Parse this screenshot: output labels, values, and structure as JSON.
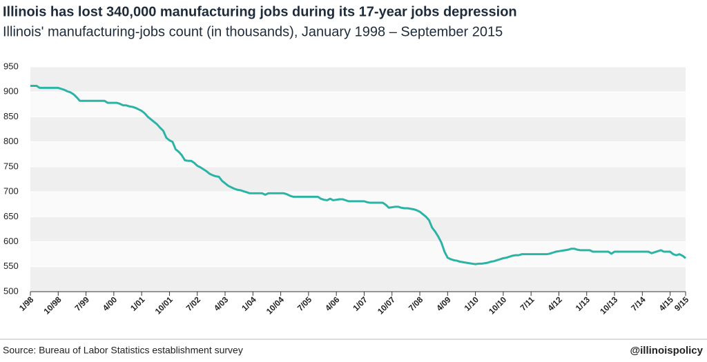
{
  "chart_data": {
    "type": "line",
    "title": "Illinois has lost 340,000 manufacturing jobs during its 17-year jobs depression",
    "subtitle": "Illinois' manufacturing-jobs count (in thousands), January 1998 – September 2015",
    "source": "Source: Bureau of Labor Statistics establishment survey",
    "credit": "@illinoispolicy",
    "color": "#2bb3a6",
    "grid": true,
    "ylim": [
      500,
      950
    ],
    "yticks": [
      500,
      550,
      600,
      650,
      700,
      750,
      800,
      850,
      900,
      950
    ],
    "categories": [
      "1/98",
      null,
      null,
      null,
      null,
      null,
      null,
      null,
      null,
      "10/98",
      null,
      null,
      null,
      null,
      null,
      null,
      null,
      null,
      "7/99",
      null,
      null,
      null,
      null,
      null,
      null,
      null,
      null,
      "4/00",
      null,
      null,
      null,
      null,
      null,
      null,
      null,
      null,
      "1/01",
      null,
      null,
      null,
      null,
      null,
      null,
      null,
      null,
      "10/01",
      null,
      null,
      null,
      null,
      null,
      null,
      null,
      null,
      "7/02",
      null,
      null,
      null,
      null,
      null,
      null,
      null,
      null,
      "4/03",
      null,
      null,
      null,
      null,
      null,
      null,
      null,
      null,
      "1/04",
      null,
      null,
      null,
      null,
      null,
      null,
      null,
      null,
      "10/04",
      null,
      null,
      null,
      null,
      null,
      null,
      null,
      null,
      "7/05",
      null,
      null,
      null,
      null,
      null,
      null,
      null,
      null,
      "4/06",
      null,
      null,
      null,
      null,
      null,
      null,
      null,
      null,
      "1/07",
      null,
      null,
      null,
      null,
      null,
      null,
      null,
      null,
      "10/07",
      null,
      null,
      null,
      null,
      null,
      null,
      null,
      null,
      "7/08",
      null,
      null,
      null,
      null,
      null,
      null,
      null,
      null,
      "4/09",
      null,
      null,
      null,
      null,
      null,
      null,
      null,
      null,
      "1/10",
      null,
      null,
      null,
      null,
      null,
      null,
      null,
      null,
      "10/10",
      null,
      null,
      null,
      null,
      null,
      null,
      null,
      null,
      "7/11",
      null,
      null,
      null,
      null,
      null,
      null,
      null,
      null,
      "4/12",
      null,
      null,
      null,
      null,
      null,
      null,
      null,
      null,
      "1/13",
      null,
      null,
      null,
      null,
      null,
      null,
      null,
      null,
      "10/13",
      null,
      null,
      null,
      null,
      null,
      null,
      null,
      null,
      "7/14",
      null,
      null,
      null,
      null,
      null,
      null,
      null,
      null,
      "4/15",
      null,
      null,
      null,
      null,
      "9/15"
    ],
    "values": [
      912,
      912,
      912,
      908,
      908,
      908,
      908,
      908,
      908,
      908,
      906,
      904,
      901,
      899,
      895,
      889,
      882,
      882,
      882,
      882,
      882,
      882,
      882,
      882,
      882,
      878,
      878,
      878,
      878,
      876,
      873,
      873,
      871,
      870,
      868,
      865,
      862,
      857,
      850,
      845,
      840,
      835,
      828,
      822,
      808,
      803,
      800,
      785,
      780,
      773,
      763,
      762,
      762,
      758,
      752,
      749,
      745,
      741,
      736,
      733,
      731,
      730,
      722,
      717,
      712,
      709,
      706,
      704,
      703,
      701,
      699,
      697,
      697,
      697,
      697,
      697,
      694,
      697,
      697,
      697,
      697,
      697,
      697,
      695,
      692,
      690,
      690,
      690,
      690,
      690,
      690,
      690,
      690,
      690,
      686,
      684,
      683,
      686,
      683,
      684,
      685,
      685,
      683,
      681,
      681,
      681,
      681,
      681,
      681,
      679,
      678,
      678,
      678,
      678,
      678,
      674,
      668,
      669,
      670,
      670,
      668,
      667,
      667,
      666,
      665,
      663,
      660,
      655,
      650,
      643,
      628,
      620,
      610,
      598,
      580,
      568,
      565,
      563,
      562,
      560,
      559,
      558,
      557,
      556,
      555,
      556,
      556,
      557,
      558,
      560,
      561,
      563,
      565,
      567,
      568,
      570,
      572,
      573,
      573,
      575,
      575,
      575,
      575,
      575,
      575,
      575,
      575,
      575,
      576,
      578,
      580,
      581,
      582,
      583,
      584,
      586,
      586,
      584,
      583,
      583,
      583,
      583,
      580,
      580,
      580,
      580,
      580,
      580,
      576,
      580,
      580,
      580,
      580,
      580,
      580,
      580,
      580,
      580,
      580,
      580,
      580,
      577,
      579,
      581,
      583,
      580,
      580,
      580,
      575,
      573,
      575,
      572,
      567
    ]
  }
}
